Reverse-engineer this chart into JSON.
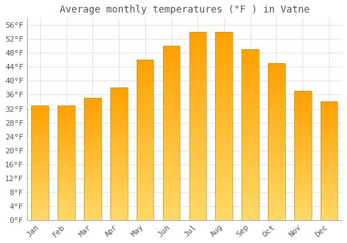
{
  "title": "Average monthly temperatures (°F ) in Vatne",
  "months": [
    "Jan",
    "Feb",
    "Mar",
    "Apr",
    "May",
    "Jun",
    "Jul",
    "Aug",
    "Sep",
    "Oct",
    "Nov",
    "Dec"
  ],
  "values": [
    33,
    33,
    35,
    38,
    46,
    50,
    54,
    54,
    49,
    45,
    37,
    34
  ],
  "bar_color_bottom": "#FFD966",
  "bar_color_top": "#FFA000",
  "bar_edge_color": "#CC8800",
  "ylim_min": 0,
  "ylim_max": 58,
  "yticks": [
    0,
    4,
    8,
    12,
    16,
    20,
    24,
    28,
    32,
    36,
    40,
    44,
    48,
    52,
    56
  ],
  "ytick_labels": [
    "0°F",
    "4°F",
    "8°F",
    "12°F",
    "16°F",
    "20°F",
    "24°F",
    "28°F",
    "32°F",
    "36°F",
    "40°F",
    "44°F",
    "48°F",
    "52°F",
    "56°F"
  ],
  "background_color": "#FFFFFF",
  "grid_color": "#DDDDDD",
  "title_fontsize": 10,
  "tick_fontsize": 8,
  "font_color": "#555555"
}
